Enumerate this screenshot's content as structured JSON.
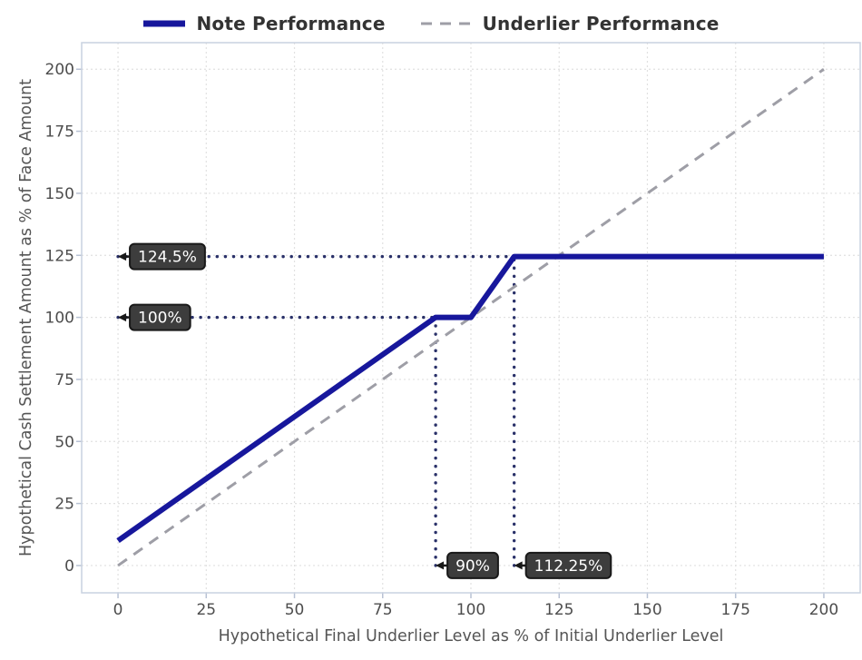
{
  "chart_data": {
    "type": "line",
    "title": "",
    "xlabel": "Hypothetical Final Underlier Level as % of Initial Underlier Level",
    "ylabel": "Hypothetical Cash Settlement Amount as % of Face Amount",
    "xlim": [
      -10.3,
      210.3
    ],
    "ylim": [
      -11,
      210.7
    ],
    "xticks": [
      0,
      25,
      50,
      75,
      100,
      125,
      150,
      175,
      200
    ],
    "yticks": [
      0,
      25,
      50,
      75,
      100,
      125,
      150,
      175,
      200
    ],
    "grid": true,
    "legend_position": "top",
    "series": [
      {
        "name": "Note Performance",
        "color": "#17179c",
        "width": 6,
        "dash": null,
        "points": [
          [
            0,
            10
          ],
          [
            90,
            100
          ],
          [
            100,
            100
          ],
          [
            112.25,
            124.5
          ],
          [
            200,
            124.5
          ]
        ]
      },
      {
        "name": "Underlier Performance",
        "color": "#9e9ea6",
        "width": 3,
        "dash": "12 9",
        "points": [
          [
            0,
            0
          ],
          [
            200,
            200
          ]
        ]
      }
    ],
    "guides": {
      "color": "#2a3169",
      "lines": [
        {
          "orientation": "h",
          "value": 124.5,
          "from": 0,
          "to": 112.25
        },
        {
          "orientation": "h",
          "value": 100,
          "from": 0,
          "to": 90
        },
        {
          "orientation": "v",
          "value": 90,
          "from": 0,
          "to": 100
        },
        {
          "orientation": "v",
          "value": 112.25,
          "from": 0,
          "to": 124.5
        }
      ]
    },
    "annotations": [
      {
        "text": "124.5%",
        "x": 0,
        "y": 124.5
      },
      {
        "text": "100%",
        "x": 0,
        "y": 100
      },
      {
        "text": "90%",
        "x": 90,
        "y": 0
      },
      {
        "text": "112.25%",
        "x": 112.25,
        "y": 0
      }
    ],
    "colors": {
      "grid": "#e1e1e1",
      "plot_border": "#c9d2e0",
      "tick": "#b8c2d4",
      "tick_label": "#4d4d4d",
      "axis_title": "#555555",
      "legend_text": "#333333",
      "annotation_bg": "#3d3d3d",
      "annotation_border": "#191919",
      "annotation_text": "#ffffff"
    }
  }
}
